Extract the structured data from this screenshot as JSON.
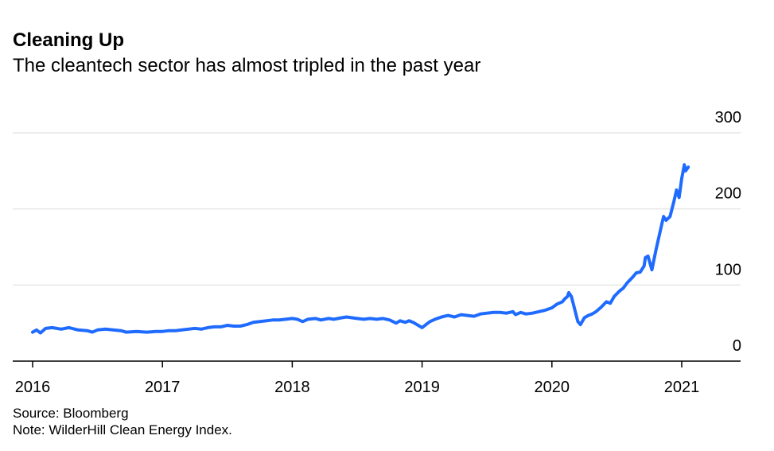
{
  "header": {
    "title": "Cleaning Up",
    "subtitle": "The cleantech sector has almost tripled in the past year"
  },
  "footer": {
    "source": "Source: Bloomberg",
    "note": "Note: WilderHill Clean Energy Index."
  },
  "colors": {
    "line": "#1f6bff",
    "grid": "#e6e6e6",
    "axis": "#000000",
    "background": "#ffffff"
  },
  "chart_data": {
    "type": "line",
    "title": "Cleaning Up",
    "subtitle": "The cleantech sector has almost tripled in the past year",
    "xlabel": "",
    "ylabel": "",
    "xlim": [
      2015.95,
      2021.45
    ],
    "ylim": [
      0,
      300
    ],
    "yticks": [
      0,
      100,
      200,
      300
    ],
    "xticks": [
      2016,
      2017,
      2018,
      2019,
      2020,
      2021
    ],
    "xtick_labels": [
      "2016",
      "2017",
      "2018",
      "2019",
      "2020",
      "2021"
    ],
    "ytick_labels": [
      "0",
      "100",
      "200",
      "300"
    ],
    "grid": true,
    "legend": "none",
    "series": [
      {
        "values": [
          [
            2016.0,
            38
          ],
          [
            2016.03,
            41
          ],
          [
            2016.06,
            37
          ],
          [
            2016.1,
            43
          ],
          [
            2016.15,
            44
          ],
          [
            2016.22,
            42
          ],
          [
            2016.28,
            44
          ],
          [
            2016.35,
            41
          ],
          [
            2016.42,
            40
          ],
          [
            2016.46,
            38
          ],
          [
            2016.5,
            41
          ],
          [
            2016.56,
            42
          ],
          [
            2016.62,
            41
          ],
          [
            2016.68,
            40
          ],
          [
            2016.72,
            38
          ],
          [
            2016.8,
            39
          ],
          [
            2016.88,
            38
          ],
          [
            2016.95,
            39
          ],
          [
            2017.0,
            39
          ],
          [
            2017.05,
            40
          ],
          [
            2017.1,
            40
          ],
          [
            2017.15,
            41
          ],
          [
            2017.2,
            42
          ],
          [
            2017.25,
            43
          ],
          [
            2017.3,
            42
          ],
          [
            2017.35,
            44
          ],
          [
            2017.4,
            45
          ],
          [
            2017.45,
            45
          ],
          [
            2017.5,
            47
          ],
          [
            2017.55,
            46
          ],
          [
            2017.6,
            46
          ],
          [
            2017.65,
            48
          ],
          [
            2017.7,
            51
          ],
          [
            2017.75,
            52
          ],
          [
            2017.8,
            53
          ],
          [
            2017.85,
            54
          ],
          [
            2017.9,
            54
          ],
          [
            2017.95,
            55
          ],
          [
            2018.0,
            56
          ],
          [
            2018.04,
            55
          ],
          [
            2018.08,
            52
          ],
          [
            2018.12,
            55
          ],
          [
            2018.18,
            56
          ],
          [
            2018.22,
            54
          ],
          [
            2018.28,
            56
          ],
          [
            2018.32,
            55
          ],
          [
            2018.38,
            57
          ],
          [
            2018.42,
            58
          ],
          [
            2018.46,
            57
          ],
          [
            2018.5,
            56
          ],
          [
            2018.55,
            55
          ],
          [
            2018.6,
            56
          ],
          [
            2018.65,
            55
          ],
          [
            2018.7,
            56
          ],
          [
            2018.75,
            54
          ],
          [
            2018.8,
            50
          ],
          [
            2018.83,
            53
          ],
          [
            2018.87,
            51
          ],
          [
            2018.9,
            53
          ],
          [
            2018.93,
            51
          ],
          [
            2019.0,
            44
          ],
          [
            2019.03,
            48
          ],
          [
            2019.06,
            52
          ],
          [
            2019.1,
            55
          ],
          [
            2019.15,
            58
          ],
          [
            2019.2,
            60
          ],
          [
            2019.25,
            58
          ],
          [
            2019.3,
            61
          ],
          [
            2019.35,
            60
          ],
          [
            2019.4,
            59
          ],
          [
            2019.45,
            62
          ],
          [
            2019.5,
            63
          ],
          [
            2019.55,
            64
          ],
          [
            2019.6,
            64
          ],
          [
            2019.65,
            63
          ],
          [
            2019.7,
            65
          ],
          [
            2019.72,
            61
          ],
          [
            2019.76,
            64
          ],
          [
            2019.8,
            62
          ],
          [
            2019.85,
            63
          ],
          [
            2019.9,
            65
          ],
          [
            2019.95,
            67
          ],
          [
            2020.0,
            70
          ],
          [
            2020.04,
            75
          ],
          [
            2020.08,
            78
          ],
          [
            2020.1,
            82
          ],
          [
            2020.12,
            85
          ],
          [
            2020.13,
            90
          ],
          [
            2020.15,
            85
          ],
          [
            2020.17,
            72
          ],
          [
            2020.2,
            52
          ],
          [
            2020.22,
            48
          ],
          [
            2020.25,
            57
          ],
          [
            2020.28,
            60
          ],
          [
            2020.31,
            62
          ],
          [
            2020.34,
            65
          ],
          [
            2020.38,
            71
          ],
          [
            2020.42,
            78
          ],
          [
            2020.45,
            76
          ],
          [
            2020.48,
            85
          ],
          [
            2020.52,
            92
          ],
          [
            2020.55,
            96
          ],
          [
            2020.58,
            103
          ],
          [
            2020.62,
            110
          ],
          [
            2020.65,
            116
          ],
          [
            2020.68,
            117
          ],
          [
            2020.71,
            125
          ],
          [
            2020.72,
            136
          ],
          [
            2020.74,
            138
          ],
          [
            2020.77,
            120
          ],
          [
            2020.8,
            145
          ],
          [
            2020.82,
            160
          ],
          [
            2020.84,
            175
          ],
          [
            2020.86,
            190
          ],
          [
            2020.88,
            185
          ],
          [
            2020.91,
            190
          ],
          [
            2020.94,
            210
          ],
          [
            2020.96,
            225
          ],
          [
            2020.98,
            215
          ],
          [
            2021.0,
            240
          ],
          [
            2021.02,
            258
          ],
          [
            2021.03,
            250
          ],
          [
            2021.05,
            255
          ]
        ]
      }
    ]
  }
}
